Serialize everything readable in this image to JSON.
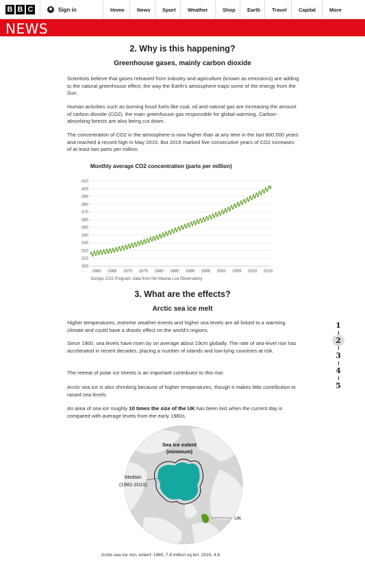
{
  "header": {
    "logo_letters": [
      "B",
      "B",
      "C"
    ],
    "signin_label": "Sign in",
    "nav": [
      "Home",
      "News",
      "Sport",
      "Weather",
      "Shop",
      "Earth",
      "Travel",
      "Capital",
      "More"
    ],
    "news_label": "NEWS"
  },
  "section2": {
    "title": "2. Why is this happening?",
    "subtitle": "Greenhouse gases, mainly carbon dioxide",
    "p1": "Scientists believe that gases released from industry and agriculture (known as emissions) are adding to the natural greenhouse effect, the way the Earth's atmosphere traps some of the energy from the Sun.",
    "p2": "Human activities such as burning fossil fuels like coal, oil and natural gas are increasing the amount of carbon dioxide (CO2), the main greenhouse gas responsible for global warming. Carbon-absorbing forests are also being cut down.",
    "p3": "The concentration of CO2 in the atmosphere is now higher than at any time in the last 800,000 years and reached a record high in May 2015. But 2016 marked five consecutive years of CO2 increases of at least two parts per million."
  },
  "chart_data": {
    "type": "line",
    "title": "Monthly average CO2 concentration (parts per million)",
    "source": "Scripps CO2 Program, data from the Mauna Loa Observatory",
    "xlim": [
      1958,
      2016
    ],
    "ylim": [
      300,
      410
    ],
    "x_ticks": [
      1960,
      1965,
      1970,
      1975,
      1980,
      1985,
      1990,
      1995,
      2000,
      2005,
      2010,
      2015
    ],
    "y_ticks": [
      300,
      310,
      320,
      330,
      340,
      350,
      360,
      370,
      380,
      390,
      400,
      410
    ],
    "grid": true,
    "color": "#5a9a1b",
    "series": [
      {
        "x": [
          1958,
          1960,
          1965,
          1970,
          1975,
          1980,
          1985,
          1990,
          1995,
          2000,
          2005,
          2010,
          2015,
          2016
        ],
        "y": [
          315,
          317,
          320,
          325,
          331,
          338,
          346,
          354,
          361,
          369,
          379,
          389,
          400,
          404
        ]
      }
    ],
    "seasonal_amplitude_ppm": 3
  },
  "section3": {
    "title": "3. What are the effects?",
    "subtitle": "Arctic sea ice melt",
    "p1": "Higher temperatures, extreme weather events and higher sea levels are all linked to a warming climate and could have a drastic effect on the world's regions.",
    "p2": "Since 1900, sea levels have risen by on average about 19cm globally. The rate of sea-level rise has accelerated in recent decades, placing a number of islands and low-lying countries at risk.",
    "p3": "The retreat of polar ice sheets is an important contributor to this rise.",
    "p4": "Arctic sea ice is also shrinking because of higher temperatures, though it makes little contribution to raised sea levels.",
    "p5_before": "An area of sea ice roughly ",
    "p5_bold": "10 times the size of the UK",
    "p5_after": " has been lost when the current day is compared with average levels from the early 1980s."
  },
  "pager": [
    "1",
    "2",
    "3",
    "4",
    "5"
  ],
  "pager_active": 1,
  "map": {
    "label_extent": "Sea ice extent",
    "label_min": "(minimum)",
    "label_median": "Median",
    "label_median_years": "(1981-2010)",
    "label_uk": "UK",
    "ice_color": "#15a8a0",
    "uk_color": "#5a9a1b",
    "caption": "Arctic sea ice min. extent: 1980, 7.8 million sq km. 2015, 4.6"
  }
}
